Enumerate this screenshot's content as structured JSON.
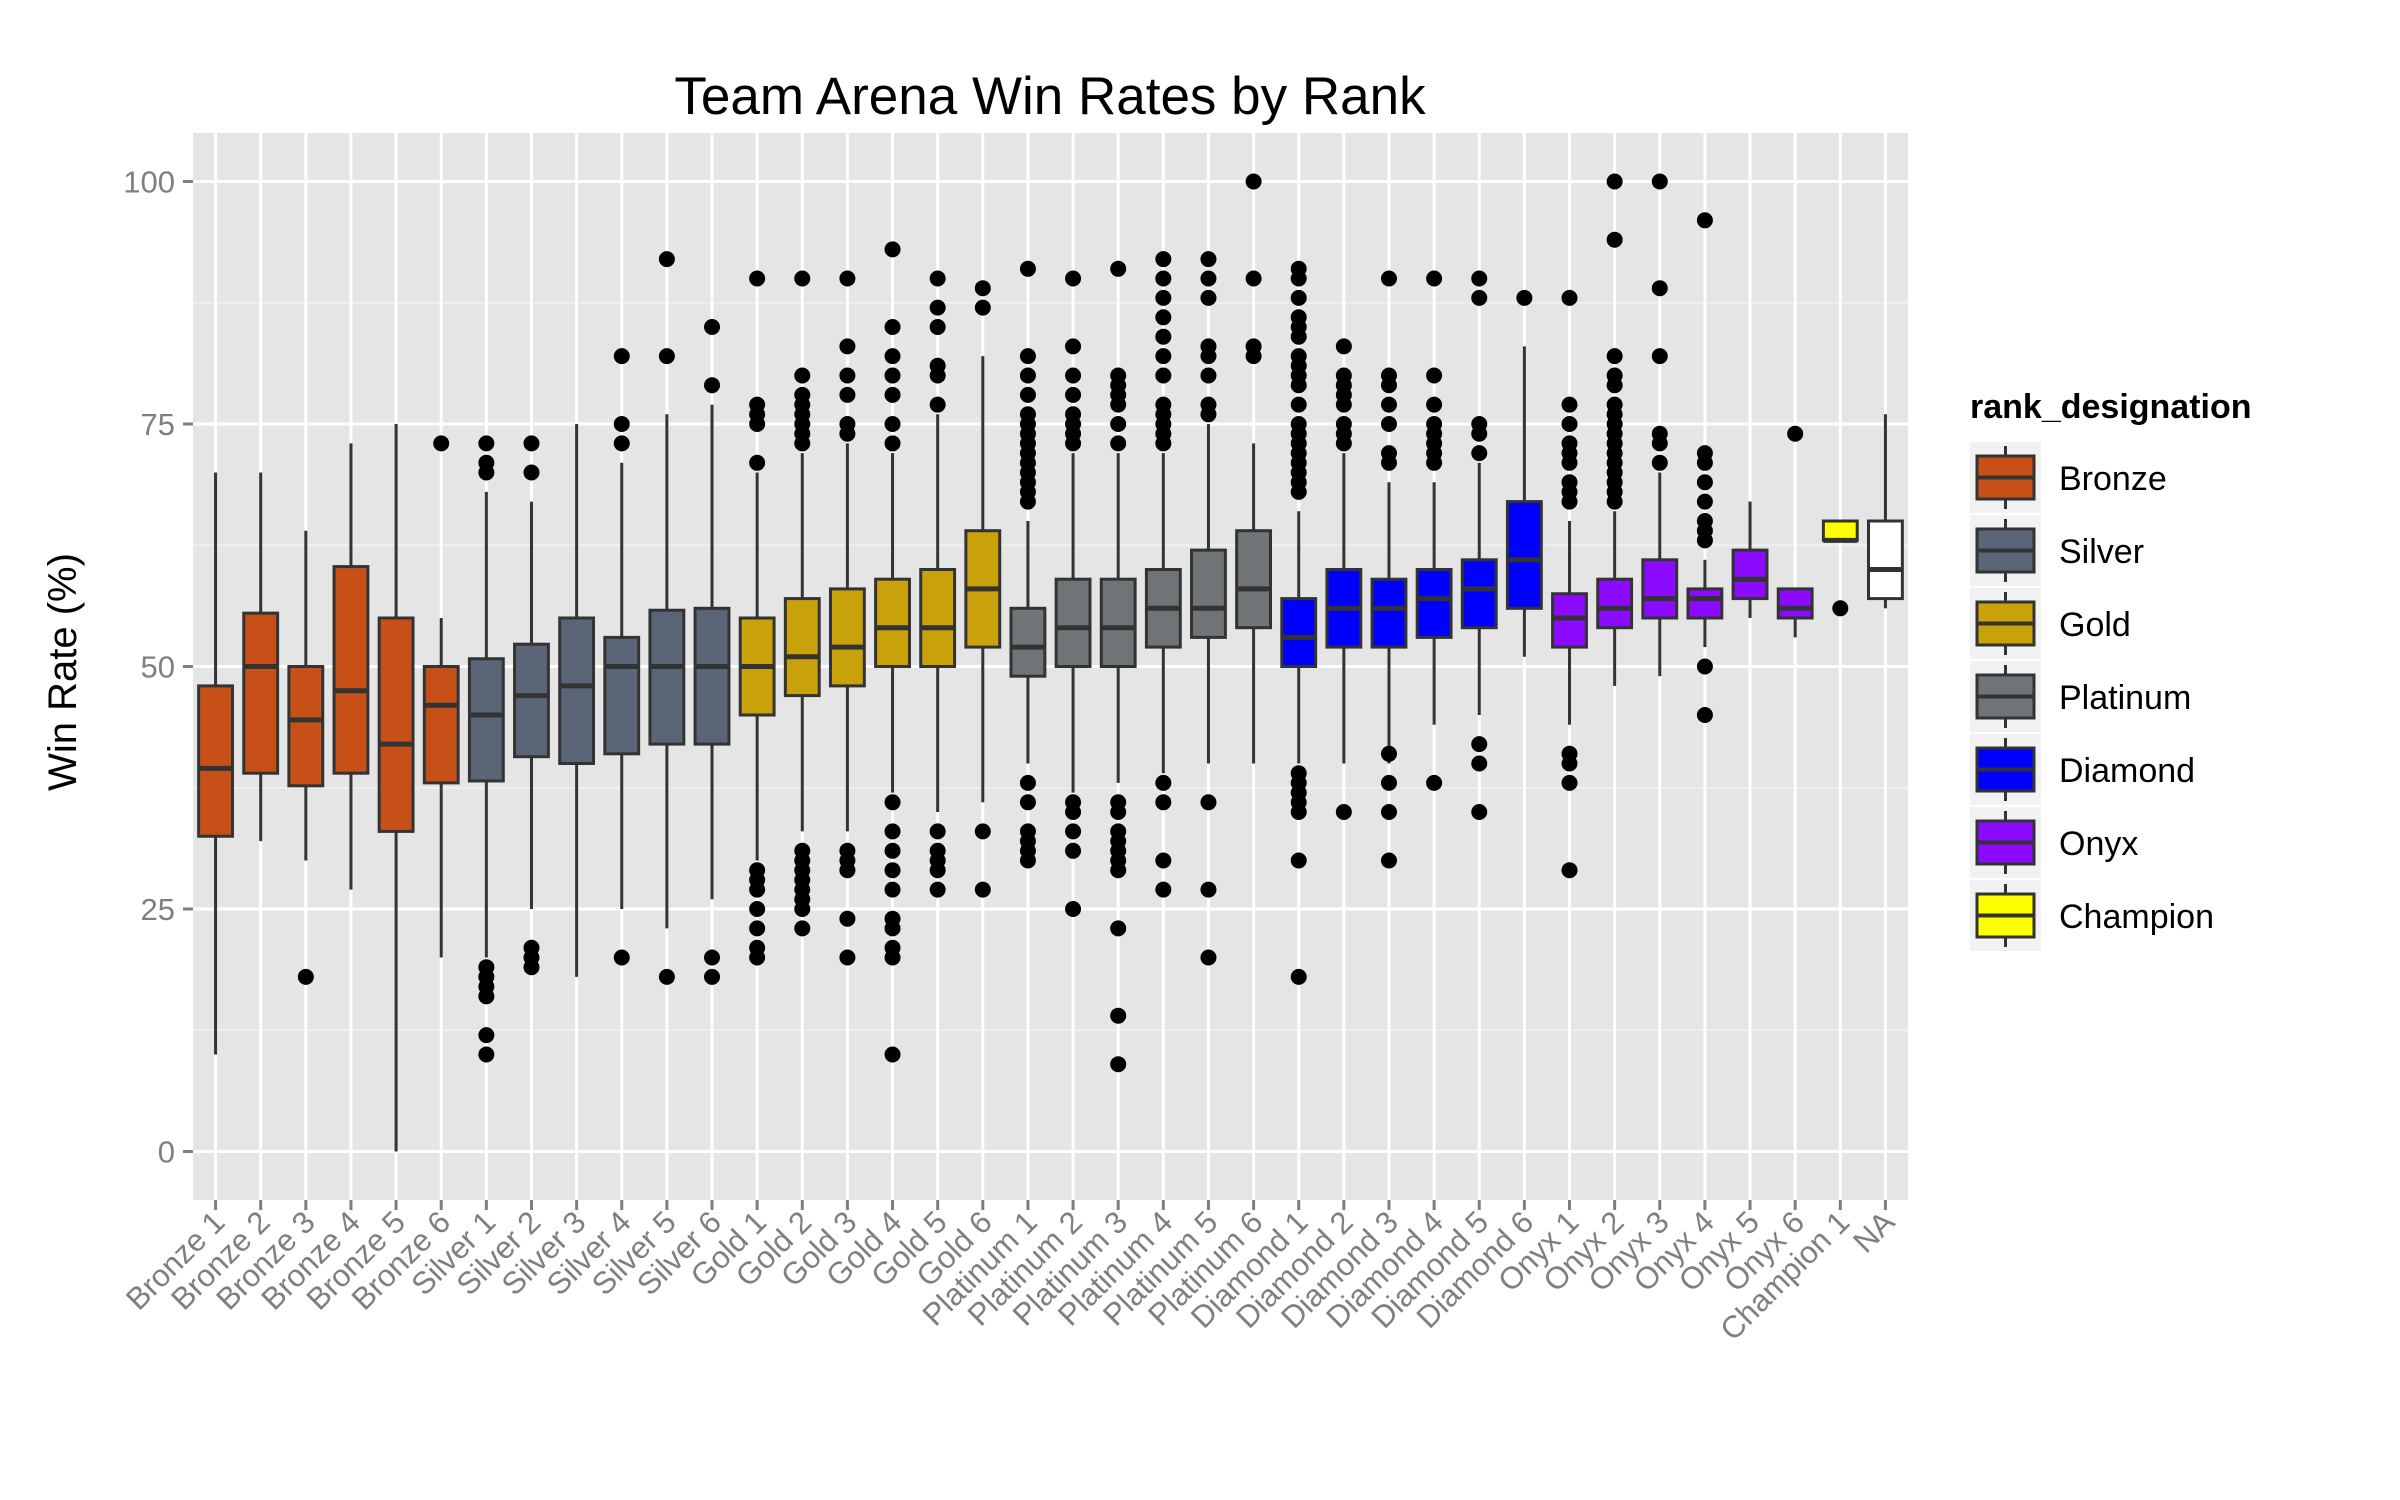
{
  "chart_data": {
    "type": "boxplot",
    "title": "Team Arena Win Rates by Rank",
    "xlabel": "",
    "ylabel": "Win Rate (%)",
    "ylim": [
      -5,
      105
    ],
    "yticks": [
      0,
      25,
      50,
      75,
      100
    ],
    "grid": true,
    "legend": {
      "title": "rank_designation",
      "placement": "right",
      "items": [
        {
          "label": "Bronze",
          "color": "#c65018"
        },
        {
          "label": "Silver",
          "color": "#5a6578"
        },
        {
          "label": "Gold",
          "color": "#c9a10a"
        },
        {
          "label": "Platinum",
          "color": "#6f7577"
        },
        {
          "label": "Diamond",
          "color": "#0000ff"
        },
        {
          "label": "Onyx",
          "color": "#8b0aff"
        },
        {
          "label": "Champion",
          "color": "#ffff00"
        }
      ],
      "na_color": "#ffffff"
    },
    "categories": [
      {
        "label": "Bronze 1",
        "group": 0,
        "whisker_low": 10,
        "q1": 32.5,
        "median": 39.5,
        "q3": 48,
        "whisker_high": 70,
        "outliers": []
      },
      {
        "label": "Bronze 2",
        "group": 0,
        "whisker_low": 32,
        "q1": 39,
        "median": 50,
        "q3": 55.5,
        "whisker_high": 70,
        "outliers": []
      },
      {
        "label": "Bronze 3",
        "group": 0,
        "whisker_low": 30,
        "q1": 37.7,
        "median": 44.5,
        "q3": 50,
        "whisker_high": 64,
        "outliers": [
          18
        ]
      },
      {
        "label": "Bronze 4",
        "group": 0,
        "whisker_low": 27,
        "q1": 39,
        "median": 47.5,
        "q3": 60.3,
        "whisker_high": 73,
        "outliers": []
      },
      {
        "label": "Bronze 5",
        "group": 0,
        "whisker_low": 0,
        "q1": 33,
        "median": 42,
        "q3": 55,
        "whisker_high": 75,
        "outliers": []
      },
      {
        "label": "Bronze 6",
        "group": 0,
        "whisker_low": 20,
        "q1": 38,
        "median": 46,
        "q3": 50,
        "whisker_high": 55,
        "outliers": [
          73
        ]
      },
      {
        "label": "Silver 1",
        "group": 1,
        "whisker_low": 20,
        "q1": 38.2,
        "median": 45,
        "q3": 50.8,
        "whisker_high": 68,
        "outliers": [
          10,
          12,
          16,
          17,
          18,
          19,
          70,
          71,
          73
        ]
      },
      {
        "label": "Silver 2",
        "group": 1,
        "whisker_low": 25,
        "q1": 40.7,
        "median": 47,
        "q3": 52.3,
        "whisker_high": 67,
        "outliers": [
          19,
          20,
          21,
          70,
          73
        ]
      },
      {
        "label": "Silver 3",
        "group": 1,
        "whisker_low": 18,
        "q1": 40,
        "median": 48,
        "q3": 55,
        "whisker_high": 75,
        "outliers": []
      },
      {
        "label": "Silver 4",
        "group": 1,
        "whisker_low": 25,
        "q1": 41,
        "median": 50,
        "q3": 53,
        "whisker_high": 71,
        "outliers": [
          20,
          73,
          75,
          82
        ]
      },
      {
        "label": "Silver 5",
        "group": 1,
        "whisker_low": 23,
        "q1": 42,
        "median": 50,
        "q3": 55.8,
        "whisker_high": 76,
        "outliers": [
          18,
          82,
          92
        ]
      },
      {
        "label": "Silver 6",
        "group": 1,
        "whisker_low": 26,
        "q1": 42,
        "median": 50,
        "q3": 56,
        "whisker_high": 77,
        "outliers": [
          18,
          20,
          79,
          85
        ]
      },
      {
        "label": "Gold 1",
        "group": 2,
        "whisker_low": 30,
        "q1": 45,
        "median": 50,
        "q3": 55,
        "whisker_high": 70,
        "outliers": [
          20,
          21,
          23,
          25,
          27,
          28,
          29,
          71,
          75,
          76,
          77,
          90
        ]
      },
      {
        "label": "Gold 2",
        "group": 2,
        "whisker_low": 33,
        "q1": 47,
        "median": 51,
        "q3": 57,
        "whisker_high": 72,
        "outliers": [
          23,
          25,
          26,
          27,
          28,
          29,
          30,
          31,
          73,
          74,
          75,
          76,
          77,
          78,
          80,
          90
        ]
      },
      {
        "label": "Gold 3",
        "group": 2,
        "whisker_low": 33,
        "q1": 48,
        "median": 52,
        "q3": 58,
        "whisker_high": 73,
        "outliers": [
          20,
          24,
          29,
          30,
          31,
          74,
          75,
          78,
          80,
          83,
          90
        ]
      },
      {
        "label": "Gold 4",
        "group": 2,
        "whisker_low": 37,
        "q1": 50,
        "median": 54,
        "q3": 59,
        "whisker_high": 72,
        "outliers": [
          10,
          20,
          21,
          23,
          24,
          27,
          29,
          31,
          33,
          36,
          73,
          75,
          78,
          80,
          82,
          85,
          93
        ]
      },
      {
        "label": "Gold 5",
        "group": 2,
        "whisker_low": 35,
        "q1": 50,
        "median": 54,
        "q3": 60,
        "whisker_high": 76,
        "outliers": [
          27,
          29,
          30,
          31,
          33,
          77,
          80,
          81,
          85,
          87,
          90
        ]
      },
      {
        "label": "Gold 6",
        "group": 2,
        "whisker_low": 36,
        "q1": 52,
        "median": 58,
        "q3": 64,
        "whisker_high": 82,
        "outliers": [
          27,
          33,
          87,
          89
        ]
      },
      {
        "label": "Platinum 1",
        "group": 3,
        "whisker_low": 40,
        "q1": 49,
        "median": 52,
        "q3": 56,
        "whisker_high": 65,
        "outliers": [
          30,
          31,
          32,
          33,
          36,
          38,
          67,
          68,
          69,
          70,
          71,
          72,
          73,
          74,
          75,
          76,
          78,
          80,
          82,
          91
        ]
      },
      {
        "label": "Platinum 2",
        "group": 3,
        "whisker_low": 37,
        "q1": 50,
        "median": 54,
        "q3": 59,
        "whisker_high": 72,
        "outliers": [
          25,
          31,
          33,
          35,
          36,
          73,
          74,
          75,
          76,
          78,
          80,
          83,
          90
        ]
      },
      {
        "label": "Platinum 3",
        "group": 3,
        "whisker_low": 38,
        "q1": 50,
        "median": 54,
        "q3": 59,
        "whisker_high": 72,
        "outliers": [
          9,
          14,
          23,
          29,
          30,
          31,
          32,
          33,
          35,
          36,
          73,
          75,
          77,
          78,
          79,
          80,
          91
        ]
      },
      {
        "label": "Platinum 4",
        "group": 3,
        "whisker_low": 39,
        "q1": 52,
        "median": 56,
        "q3": 60,
        "whisker_high": 72,
        "outliers": [
          27,
          30,
          36,
          38,
          73,
          74,
          75,
          76,
          77,
          80,
          82,
          84,
          86,
          88,
          90,
          92
        ]
      },
      {
        "label": "Platinum 5",
        "group": 3,
        "whisker_low": 40,
        "q1": 53,
        "median": 56,
        "q3": 62,
        "whisker_high": 75,
        "outliers": [
          20,
          27,
          36,
          76,
          77,
          80,
          82,
          83,
          88,
          90,
          92
        ]
      },
      {
        "label": "Platinum 6",
        "group": 3,
        "whisker_low": 40,
        "q1": 54,
        "median": 58,
        "q3": 64,
        "whisker_high": 73,
        "outliers": [
          82,
          83,
          90,
          100
        ]
      },
      {
        "label": "Diamond 1",
        "group": 4,
        "whisker_low": 40,
        "q1": 50,
        "median": 53,
        "q3": 57,
        "whisker_high": 66,
        "outliers": [
          18,
          30,
          35,
          36,
          37,
          38,
          39,
          68,
          69,
          70,
          71,
          72,
          73,
          74,
          75,
          77,
          79,
          80,
          81,
          82,
          84,
          85,
          86,
          88,
          90,
          91
        ]
      },
      {
        "label": "Diamond 2",
        "group": 4,
        "whisker_low": 40,
        "q1": 52,
        "median": 56,
        "q3": 60,
        "whisker_high": 72,
        "outliers": [
          35,
          73,
          74,
          75,
          77,
          78,
          79,
          80,
          83
        ]
      },
      {
        "label": "Diamond 3",
        "group": 4,
        "whisker_low": 40,
        "q1": 52,
        "median": 56,
        "q3": 59,
        "whisker_high": 69,
        "outliers": [
          30,
          35,
          38,
          41,
          71,
          72,
          75,
          77,
          79,
          80,
          90
        ]
      },
      {
        "label": "Diamond 4",
        "group": 4,
        "whisker_low": 44,
        "q1": 53,
        "median": 57,
        "q3": 60,
        "whisker_high": 69,
        "outliers": [
          38,
          71,
          72,
          73,
          74,
          75,
          77,
          80,
          90
        ]
      },
      {
        "label": "Diamond 5",
        "group": 4,
        "whisker_low": 45,
        "q1": 54,
        "median": 58,
        "q3": 61,
        "whisker_high": 71,
        "outliers": [
          35,
          40,
          42,
          72,
          74,
          75,
          88,
          90
        ]
      },
      {
        "label": "Diamond 6",
        "group": 4,
        "whisker_low": 51,
        "q1": 56,
        "median": 61,
        "q3": 67,
        "whisker_high": 83,
        "outliers": [
          88
        ]
      },
      {
        "label": "Onyx 1",
        "group": 5,
        "whisker_low": 44,
        "q1": 52,
        "median": 55,
        "q3": 57.5,
        "whisker_high": 65,
        "outliers": [
          29,
          38,
          40,
          41,
          67,
          68,
          69,
          71,
          72,
          73,
          75,
          77,
          88
        ]
      },
      {
        "label": "Onyx 2",
        "group": 5,
        "whisker_low": 48,
        "q1": 54,
        "median": 56,
        "q3": 59,
        "whisker_high": 66,
        "outliers": [
          67,
          68,
          69,
          70,
          71,
          72,
          73,
          74,
          75,
          76,
          77,
          79,
          80,
          82,
          94,
          100
        ]
      },
      {
        "label": "Onyx 3",
        "group": 5,
        "whisker_low": 49,
        "q1": 55,
        "median": 57,
        "q3": 61,
        "whisker_high": 70,
        "outliers": [
          71,
          73,
          74,
          82,
          89,
          100
        ]
      },
      {
        "label": "Onyx 4",
        "group": 5,
        "whisker_low": 52,
        "q1": 55,
        "median": 57,
        "q3": 58,
        "whisker_high": 61,
        "outliers": [
          45,
          50,
          63,
          64,
          65,
          67,
          69,
          71,
          72,
          96
        ]
      },
      {
        "label": "Onyx 5",
        "group": 5,
        "whisker_low": 55,
        "q1": 57,
        "median": 59,
        "q3": 62,
        "whisker_high": 67,
        "outliers": []
      },
      {
        "label": "Onyx 6",
        "group": 5,
        "whisker_low": 53,
        "q1": 55,
        "median": 56,
        "q3": 58,
        "whisker_high": 58,
        "outliers": [
          74
        ]
      },
      {
        "label": "Champion 1",
        "group": 6,
        "whisker_low": 63,
        "q1": 63,
        "median": 63,
        "q3": 65,
        "whisker_high": 65,
        "outliers": [
          56
        ]
      },
      {
        "label": "NA",
        "group": -1,
        "whisker_low": 56,
        "q1": 57,
        "median": 60,
        "q3": 65,
        "whisker_high": 76,
        "outliers": []
      }
    ]
  }
}
